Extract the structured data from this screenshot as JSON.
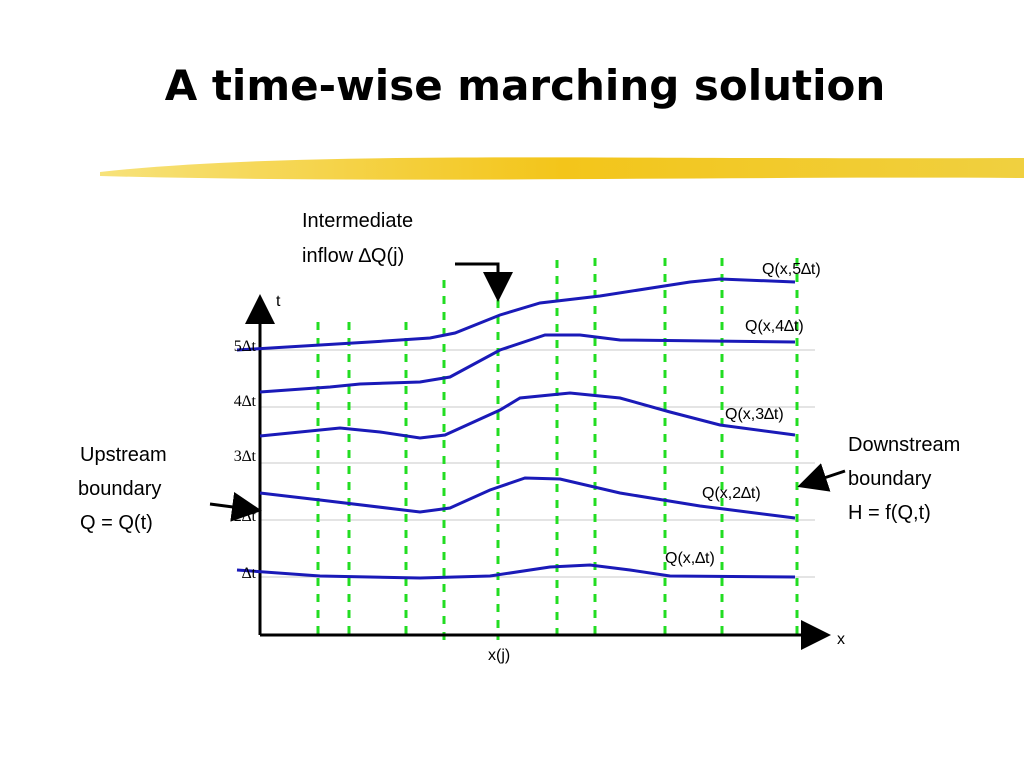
{
  "title": "A time-wise marching solution",
  "inflow_label": [
    "Intermediate",
    "inflow ∆Q(j)"
  ],
  "axis": {
    "t": "t",
    "x": "x",
    "xj": "x(j)"
  },
  "time_levels": [
    "5∆t",
    "4∆t",
    "3∆t",
    "2∆t",
    "∆t"
  ],
  "curve_labels": [
    "Q(x,5∆t)",
    "Q(x,4∆t)",
    "Q(x,3∆t)",
    "Q(x,2∆t)",
    "Q(x,∆t)"
  ],
  "upstream": [
    "Upstream",
    "boundary",
    "Q = Q(t)"
  ],
  "downstream": [
    "Downstream",
    "boundary",
    "H = f(Q,t)"
  ]
}
